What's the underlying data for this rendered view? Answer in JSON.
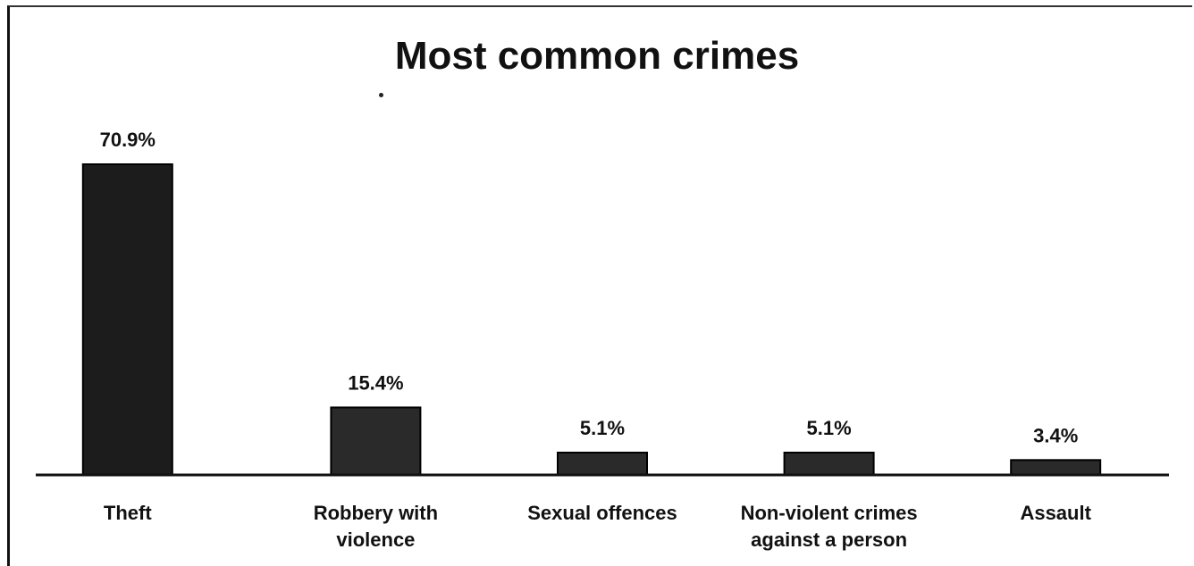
{
  "chart_data": {
    "type": "bar",
    "title": "Most common crimes",
    "categories": [
      [
        "Theft"
      ],
      [
        "Robbery with",
        "violence"
      ],
      [
        "Sexual offences"
      ],
      [
        "Non-violent crimes",
        "against a person"
      ],
      [
        "Assault"
      ]
    ],
    "values": [
      70.9,
      15.4,
      5.1,
      5.1,
      3.4
    ],
    "data_labels": [
      "70.9%",
      "15.4%",
      "5.1%",
      "5.1%",
      "3.4%"
    ],
    "ylim": [
      0,
      70.9
    ],
    "grid": false,
    "legend": "none",
    "colors": {
      "bar_dark": "#1c1c1c",
      "bar_mid": "#2a2a2a",
      "axis": "#111111",
      "text": "#111111"
    }
  }
}
